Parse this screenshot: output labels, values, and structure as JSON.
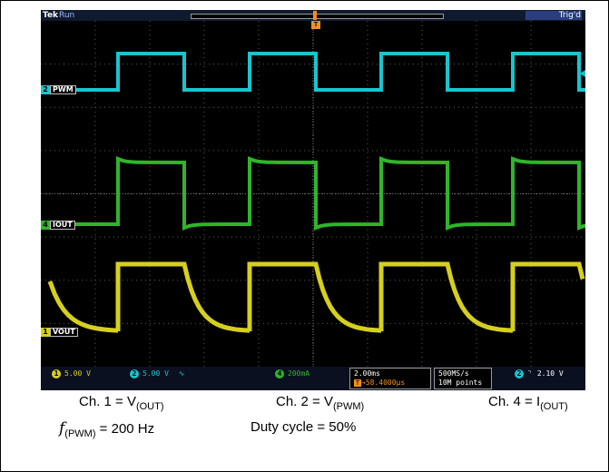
{
  "scope": {
    "brand": "Tek",
    "run_state": "Run",
    "trigger_state": "Trig'd",
    "trigger_marker": "T",
    "channels": [
      {
        "number": "2",
        "label": "PWM",
        "color": "#19c4cf"
      },
      {
        "number": "4",
        "label": "IOUT",
        "color": "#2fb52a"
      },
      {
        "number": "1",
        "label": "VOUT",
        "color": "#d6cf1e"
      }
    ],
    "status": {
      "ch1_scale": "5.00 V",
      "ch2_scale": "5.00 V",
      "ch2_coupling_icon": "ac-coupling-icon",
      "ch4_scale": "200mA",
      "timebase": "2.00ms",
      "position": "→58.4000µs",
      "sample_rate": "500MS/s",
      "record_length": "10M points",
      "trigger_channel": "2",
      "trigger_slope_icon": "falling-edge-icon",
      "trigger_level": "2.10 V"
    },
    "colors": {
      "ch1": "#d6cf1e",
      "ch2": "#19c4cf",
      "ch4": "#2fb52a",
      "trigger": "#f09020"
    }
  },
  "caption": {
    "ch1_prefix": "Ch. 1 = V",
    "ch1_sub": "(OUT)",
    "ch2_prefix": "Ch. 2 = V",
    "ch2_sub": "(PWM)",
    "ch4_prefix": "Ch. 4 = I",
    "ch4_sub": "(OUT)",
    "freq_symbol": "f",
    "freq_sub": "(PWM)",
    "freq_value": " = 200 Hz",
    "duty": "Duty cycle = 50%"
  }
}
